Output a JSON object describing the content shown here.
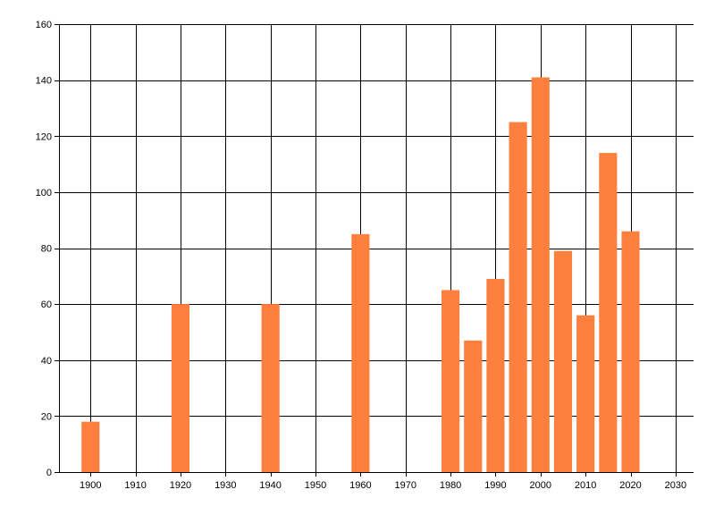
{
  "chart_data": {
    "type": "bar",
    "title": "",
    "xlabel": "",
    "ylabel": "",
    "x": [
      1900,
      1920,
      1940,
      1960,
      1980,
      1985,
      1990,
      1995,
      2000,
      2005,
      2010,
      2015,
      2020
    ],
    "values": [
      18,
      60,
      60,
      85,
      65,
      47,
      69,
      125,
      141,
      79,
      56,
      114,
      86
    ],
    "xlim": [
      1893,
      2034
    ],
    "ylim": [
      0,
      160
    ],
    "x_ticks": [
      1900,
      1910,
      1920,
      1930,
      1940,
      1950,
      1960,
      1970,
      1980,
      1990,
      2000,
      2010,
      2020,
      2030
    ],
    "y_ticks": [
      0,
      20,
      40,
      60,
      80,
      100,
      120,
      140,
      160
    ],
    "x_tick_labels": [
      "1900",
      "1910",
      "1920",
      "1930",
      "1940",
      "1950",
      "1960",
      "1970",
      "1980",
      "1990",
      "2000",
      "2010",
      "2020",
      "2030"
    ],
    "y_tick_labels": [
      "0",
      "20",
      "40",
      "60",
      "80",
      "100",
      "120",
      "140",
      "160"
    ],
    "bar_width": 4,
    "grid": true,
    "legend": "none",
    "colors": {
      "bar": "#FF7F3F",
      "grid": "#000000",
      "axis": "#000000",
      "background": "#FFFFFF"
    }
  }
}
